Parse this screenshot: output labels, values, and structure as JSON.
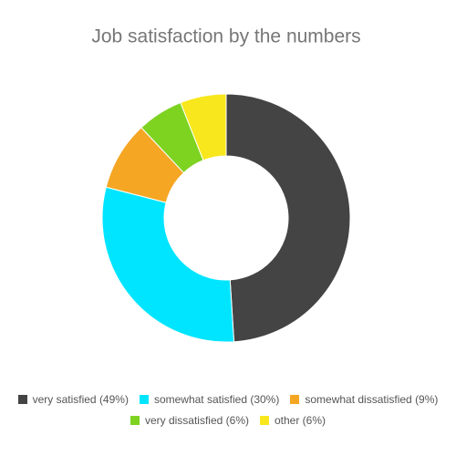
{
  "chart_data": {
    "type": "donut",
    "title": "Job satisfaction by the numbers",
    "categories": [
      "very satisfied (49%)",
      "somewhat satisfied (30%)",
      "somewhat dissatisfied (9%)",
      "very dissatisfied (6%)",
      "other (6%)"
    ],
    "values": [
      49,
      30,
      9,
      6,
      6
    ],
    "colors": [
      "#444444",
      "#00e5ff",
      "#f5a623",
      "#7ed321",
      "#f8e71c"
    ],
    "legend": "bottom"
  }
}
